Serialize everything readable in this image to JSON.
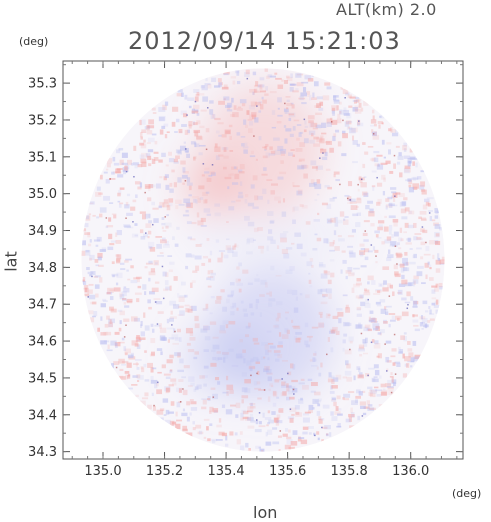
{
  "header": {
    "altitude_label": "ALT(km) 2.0",
    "datetime": "2012/09/14 15:21:03"
  },
  "chart_data": {
    "type": "heatmap",
    "title": "2012/09/14 15:21:03",
    "subtitle": "ALT(km) 2.0",
    "xlabel": "lon",
    "ylabel": "lat",
    "x_unit": "(deg)",
    "y_unit": "(deg)",
    "xlim": [
      134.87,
      136.17
    ],
    "ylim": [
      34.28,
      35.36
    ],
    "x_ticks": [
      "135.0",
      "135.2",
      "135.4",
      "135.6",
      "135.8",
      "136.0"
    ],
    "y_ticks": [
      "34.3",
      "34.4",
      "34.5",
      "34.6",
      "34.7",
      "34.8",
      "34.9",
      "35.0",
      "35.1",
      "35.2",
      "35.3"
    ],
    "x_tick_values": [
      135.0,
      135.2,
      135.4,
      135.6,
      135.8,
      136.0
    ],
    "y_tick_values": [
      34.3,
      34.4,
      34.5,
      34.6,
      34.7,
      34.8,
      34.9,
      35.0,
      35.1,
      35.2,
      35.3
    ],
    "radar_center": {
      "lon": 135.52,
      "lat": 34.82
    },
    "radar_range_deg": {
      "lon": 0.59,
      "lat": 0.52
    },
    "colors": {
      "positive": "#f4a9a8",
      "negative": "#b9bdf0",
      "neutral": "#f7f5fa"
    },
    "regions": [
      {
        "lon": 135.52,
        "lat": 35.12,
        "rlon": 0.2,
        "rlat": 0.18,
        "sign": "positive",
        "strength": 0.35
      },
      {
        "lon": 135.35,
        "lat": 35.02,
        "rlon": 0.1,
        "rlat": 0.08,
        "sign": "positive",
        "strength": 0.45
      },
      {
        "lon": 135.55,
        "lat": 34.62,
        "rlon": 0.2,
        "rlat": 0.18,
        "sign": "negative",
        "strength": 0.45
      },
      {
        "lon": 135.4,
        "lat": 34.55,
        "rlon": 0.14,
        "rlat": 0.1,
        "sign": "negative",
        "strength": 0.4
      },
      {
        "lon": 135.55,
        "lat": 34.88,
        "rlon": 0.28,
        "rlat": 0.06,
        "sign": "negative",
        "strength": 0.12
      }
    ],
    "grid": false,
    "grid_lines": false
  }
}
